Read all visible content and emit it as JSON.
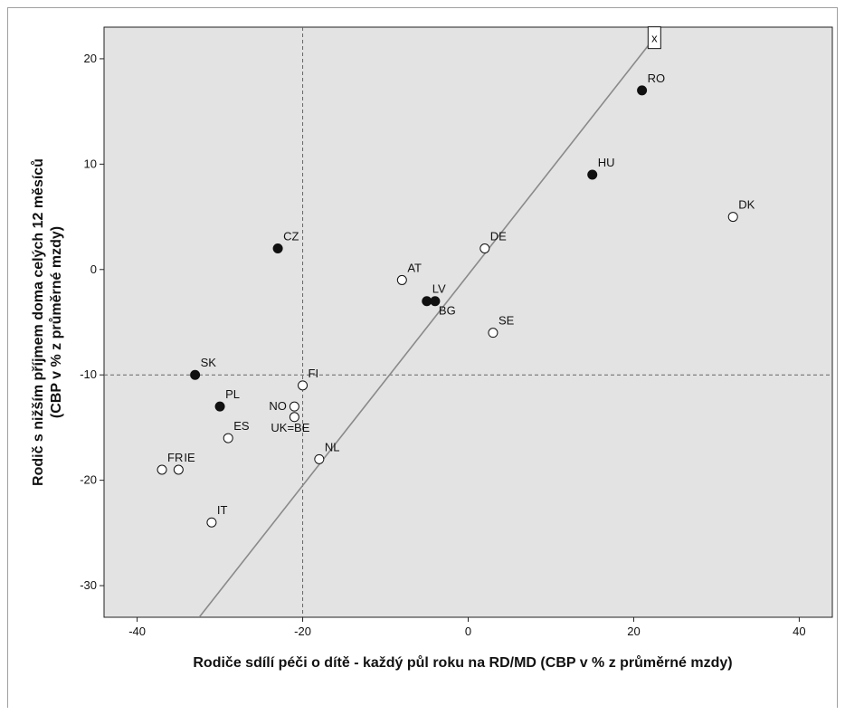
{
  "chart_data": {
    "type": "scatter",
    "title": "",
    "xlabel": "Rodiče sdílí péči o dítě - každý půl roku na RD/MD (CBP v % z průměrné mzdy)",
    "ylabel_lines": [
      "Rodič s nižším příjmem doma celých 12 měsíců",
      "(CBP v % z průměrné mzdy)"
    ],
    "xlim": [
      -44,
      44
    ],
    "ylim": [
      -33,
      23
    ],
    "xticks": [
      -40,
      -20,
      0,
      20,
      40
    ],
    "yticks": [
      -30,
      -20,
      -10,
      0,
      10,
      20
    ],
    "grid": false,
    "reference_lines": {
      "x": -20,
      "y": -10
    },
    "fit_line": [
      [
        -32.5,
        -33
      ],
      [
        22.5,
        22
      ]
    ],
    "points": [
      {
        "label": "RO",
        "x": 21,
        "y": 17,
        "filled": true
      },
      {
        "label": "HU",
        "x": 15,
        "y": 9,
        "filled": true
      },
      {
        "label": "DK",
        "x": 32,
        "y": 5,
        "filled": false
      },
      {
        "label": "CZ",
        "x": -23,
        "y": 2,
        "filled": true
      },
      {
        "label": "DE",
        "x": 2,
        "y": 2,
        "filled": false
      },
      {
        "label": "AT",
        "x": -8,
        "y": -1,
        "filled": false
      },
      {
        "label": "LV",
        "x": -5,
        "y": -3,
        "filled": true
      },
      {
        "label": "BG",
        "x": -4,
        "y": -3,
        "filled": true
      },
      {
        "label": "SE",
        "x": 3,
        "y": -6,
        "filled": false
      },
      {
        "label": "SK",
        "x": -33,
        "y": -10,
        "filled": true
      },
      {
        "label": "FI",
        "x": -20,
        "y": -11,
        "filled": false
      },
      {
        "label": "PL",
        "x": -30,
        "y": -13,
        "filled": true
      },
      {
        "label": "NO",
        "x": -21,
        "y": -13,
        "filled": false
      },
      {
        "label": "UK=BE",
        "x": -21,
        "y": -14,
        "filled": false
      },
      {
        "label": "ES",
        "x": -29,
        "y": -16,
        "filled": false
      },
      {
        "label": "NL",
        "x": -18,
        "y": -18,
        "filled": false
      },
      {
        "label": "FR",
        "x": -37,
        "y": -19,
        "filled": false
      },
      {
        "label": "IE",
        "x": -35,
        "y": -19,
        "filled": false
      },
      {
        "label": "IT",
        "x": -31,
        "y": -24,
        "filled": false
      }
    ],
    "marker_box": {
      "label": "x",
      "x": 22.5,
      "y": 22
    }
  }
}
